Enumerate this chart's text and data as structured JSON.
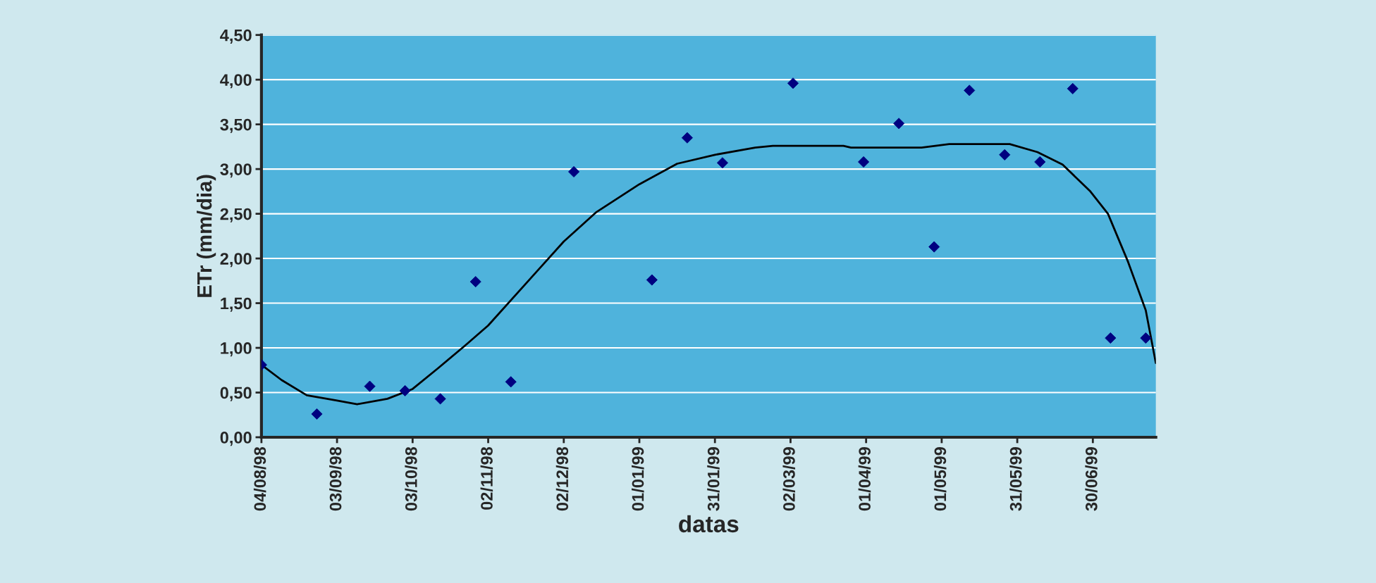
{
  "chart_data": {
    "type": "scatter",
    "xlabel": "datas",
    "ylabel": "ETr (mm/dia)",
    "xlim": [
      "1998-08-04",
      "1999-07-25"
    ],
    "xticks": [
      {
        "value": "1998-08-04",
        "label": "04/08/98"
      },
      {
        "value": "1998-09-03",
        "label": "03/09/98"
      },
      {
        "value": "1998-10-03",
        "label": "03/10/98"
      },
      {
        "value": "1998-11-02",
        "label": "02/11/98"
      },
      {
        "value": "1998-12-02",
        "label": "02/12/98"
      },
      {
        "value": "1999-01-01",
        "label": "01/01/99"
      },
      {
        "value": "1999-01-31",
        "label": "31/01/99"
      },
      {
        "value": "1999-03-02",
        "label": "02/03/99"
      },
      {
        "value": "1999-04-01",
        "label": "01/04/99"
      },
      {
        "value": "1999-05-01",
        "label": "01/05/99"
      },
      {
        "value": "1999-05-31",
        "label": "31/05/99"
      },
      {
        "value": "1999-06-30",
        "label": "30/06/99"
      }
    ],
    "ylim": [
      0,
      4.5
    ],
    "yticks": [
      {
        "value": 0,
        "label": "0,00"
      },
      {
        "value": 0.5,
        "label": "0,50"
      },
      {
        "value": 1,
        "label": "1,00"
      },
      {
        "value": 1.5,
        "label": "1,50"
      },
      {
        "value": 2,
        "label": "2,00"
      },
      {
        "value": 2.5,
        "label": "2,50"
      },
      {
        "value": 3,
        "label": "3,00"
      },
      {
        "value": 3.5,
        "label": "3,50"
      },
      {
        "value": 4,
        "label": "4,00"
      },
      {
        "value": 4.5,
        "label": "4,50"
      }
    ],
    "grid": "y",
    "legend": false,
    "series": [
      {
        "color": "#000080",
        "marker": "diamond",
        "x": [
          "1998-08-04",
          "1998-08-26",
          "1998-09-16",
          "1998-09-30",
          "1998-10-14",
          "1998-10-28",
          "1998-11-11",
          "1998-12-06",
          "1999-01-06",
          "1999-01-20",
          "1999-02-03",
          "1999-03-03",
          "1999-03-31",
          "1999-04-14",
          "1999-04-28",
          "1999-05-12",
          "1999-05-26",
          "1999-06-09",
          "1999-06-22",
          "1999-07-07",
          "1999-07-21"
        ],
        "values": [
          0.81,
          0.26,
          0.57,
          0.52,
          0.43,
          1.74,
          0.62,
          2.97,
          1.76,
          3.35,
          3.07,
          3.96,
          3.08,
          3.51,
          2.13,
          3.88,
          3.16,
          3.08,
          3.9,
          1.11,
          1.11
        ]
      },
      {
        "type": "line",
        "color": "#000000",
        "marker": "none",
        "line_style": "solid",
        "x": [
          "1998-08-04",
          "1998-08-12",
          "1998-08-22",
          "1998-09-03",
          "1998-09-11",
          "1998-09-23",
          "1998-10-03",
          "1998-10-13",
          "1998-10-24",
          "1998-11-02",
          "1998-11-17",
          "1998-12-02",
          "1998-12-15",
          "1999-01-01",
          "1999-01-16",
          "1999-01-31",
          "1999-02-16",
          "1999-02-23",
          "1999-03-23",
          "1999-03-26",
          "1999-04-23",
          "1999-05-04",
          "1999-05-28",
          "1999-06-08",
          "1999-06-18",
          "1999-06-29",
          "1999-07-06",
          "1999-07-14",
          "1999-07-21",
          "1999-07-25"
        ],
        "values": [
          0.81,
          0.64,
          0.47,
          0.41,
          0.37,
          0.43,
          0.54,
          0.77,
          1.03,
          1.25,
          1.72,
          2.19,
          2.52,
          2.83,
          3.06,
          3.16,
          3.24,
          3.26,
          3.26,
          3.24,
          3.24,
          3.28,
          3.28,
          3.19,
          3.05,
          2.75,
          2.5,
          1.96,
          1.42,
          0.83
        ]
      }
    ]
  }
}
